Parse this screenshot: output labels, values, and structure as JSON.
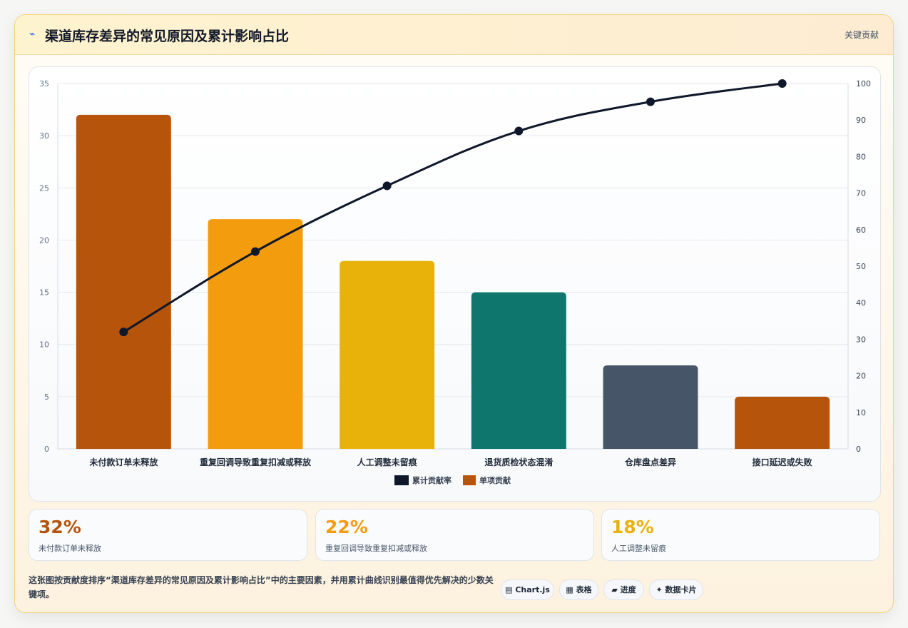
{
  "header": {
    "icon": "lightning-icon",
    "title": "渠道库存差异的常见原因及累计影响占比",
    "right_label": "关键贡献"
  },
  "chart_data": {
    "type": "bar",
    "categories": [
      "未付款订单未释放",
      "重复回调导致重复扣减或释放",
      "人工调整未留痕",
      "退货质检状态混淆",
      "仓库盘点差异",
      "接口延迟或失败"
    ],
    "series": [
      {
        "name": "单项贡献",
        "type": "bar",
        "axis": "left",
        "values": [
          32,
          22,
          18,
          15,
          8,
          5
        ],
        "colors": [
          "#b5540a",
          "#f39c0e",
          "#e8b20a",
          "#0f766e",
          "#475569",
          "#b5540a"
        ]
      },
      {
        "name": "累计贡献率",
        "type": "line",
        "axis": "right",
        "values": [
          32,
          54,
          72,
          87,
          95,
          100
        ],
        "color": "#0f172a"
      }
    ],
    "y_left": {
      "min": 0,
      "max": 35,
      "ticks": [
        0,
        5,
        10,
        15,
        20,
        25,
        30,
        35
      ]
    },
    "y_right": {
      "min": 0,
      "max": 100,
      "ticks": [
        0,
        10,
        20,
        30,
        40,
        50,
        60,
        70,
        80,
        90,
        100
      ]
    },
    "legend": [
      "累计贡献率",
      "单项贡献"
    ],
    "legend_position": "bottom",
    "grid": true
  },
  "kpis": [
    {
      "value": "32%",
      "label": "未付款订单未释放",
      "color": "#b5540a"
    },
    {
      "value": "22%",
      "label": "重复回调导致重复扣减或释放",
      "color": "#f39c0e"
    },
    {
      "value": "18%",
      "label": "人工调整未留痕",
      "color": "#e8b20a"
    }
  ],
  "footer": {
    "description": "这张图按贡献度排序“渠道库存差异的常见原因及累计影响占比”中的主要因素，并用累计曲线识别最值得优先解决的少数关键项。",
    "chips": [
      {
        "icon": "chart-icon",
        "label": "Chart.js"
      },
      {
        "icon": "table-icon",
        "label": "表格"
      },
      {
        "icon": "progress-icon",
        "label": "进度"
      },
      {
        "icon": "sparkle-icon",
        "label": "数据卡片"
      }
    ]
  }
}
